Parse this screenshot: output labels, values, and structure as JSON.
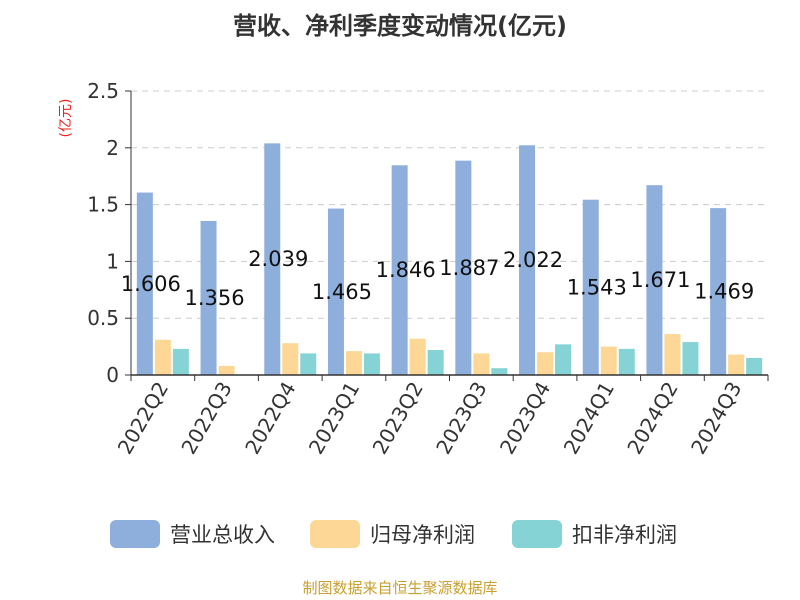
{
  "title": "营收、净利季度变动情况(亿元)",
  "source": "制图数据来自恒生聚源数据库",
  "colors": {
    "revenue": "#8eaedc",
    "net_profit": "#fdd796",
    "non_gaap_profit": "#86d3d6",
    "unit_label": "#e8231f",
    "grid": "#cccccc",
    "axis": "#333333",
    "text": "#333333"
  },
  "chart_data": {
    "type": "bar",
    "unit": "(亿元)",
    "categories": [
      "2022Q2",
      "2022Q3",
      "2022Q4",
      "2023Q1",
      "2023Q2",
      "2023Q3",
      "2023Q4",
      "2024Q1",
      "2024Q2",
      "2024Q3"
    ],
    "series": [
      {
        "name": "营业总收入",
        "values": [
          1.606,
          1.356,
          2.039,
          1.465,
          1.846,
          1.887,
          2.022,
          1.543,
          1.671,
          1.469
        ],
        "labels": [
          "1.606",
          "1.356",
          "2.039",
          "1.465",
          "1.846",
          "1.887",
          "2.022",
          "1.543",
          "1.671",
          "1.469"
        ]
      },
      {
        "name": "归母净利润",
        "values": [
          0.31,
          0.08,
          0.28,
          0.21,
          0.32,
          0.19,
          0.2,
          0.25,
          0.36,
          0.18
        ]
      },
      {
        "name": "扣非净利润",
        "values": [
          0.23,
          0.0,
          0.19,
          0.19,
          0.22,
          0.06,
          0.27,
          0.23,
          0.29,
          0.15
        ]
      }
    ],
    "ylim": [
      0,
      2.5
    ],
    "yticks": [
      0,
      0.5,
      1,
      1.5,
      2,
      2.5
    ],
    "ytick_labels": [
      "0",
      "0.5",
      "1",
      "1.5",
      "2",
      "2.5"
    ],
    "grid": true,
    "legend_position": "bottom"
  }
}
